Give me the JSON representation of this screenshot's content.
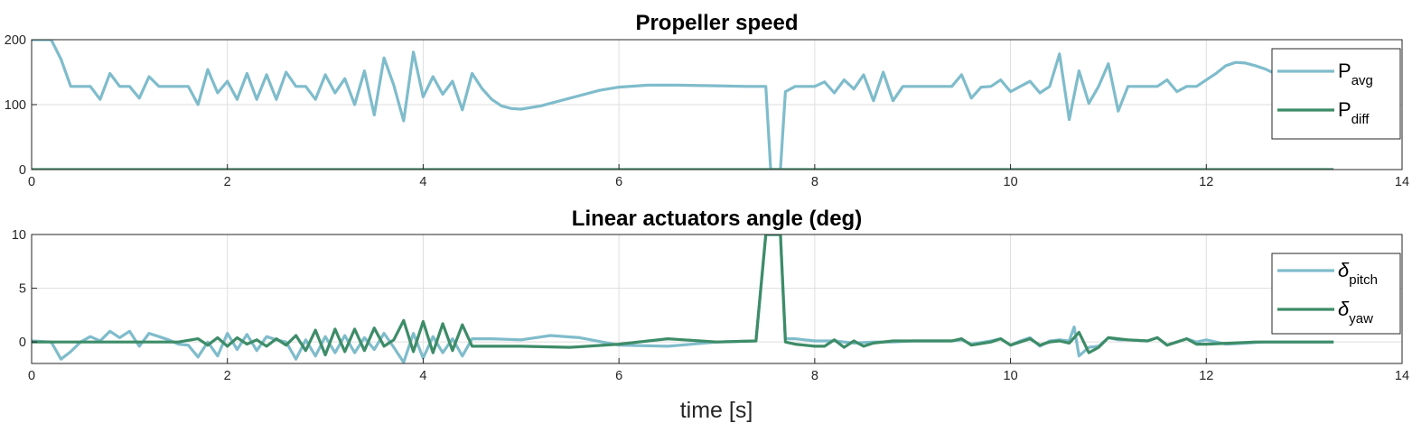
{
  "colors": {
    "series1": "#7fbccb",
    "series2": "#3d8c68"
  },
  "xlabel": "time [s]",
  "chart_data": [
    {
      "type": "line",
      "title": "Propeller speed",
      "xlabel": "time [s]",
      "ylabel": "",
      "xlim": [
        0,
        14
      ],
      "ylim": [
        0,
        200
      ],
      "xticks": [
        0,
        2,
        4,
        6,
        8,
        10,
        12,
        14
      ],
      "yticks": [
        0,
        100,
        200
      ],
      "grid": true,
      "legend_position": "right",
      "series": [
        {
          "name": "P",
          "sub": "avg",
          "color": "#7fbccb",
          "x": [
            0,
            0.2,
            0.3,
            0.4,
            0.6,
            0.7,
            0.8,
            0.9,
            1.0,
            1.1,
            1.2,
            1.3,
            1.5,
            1.6,
            1.7,
            1.8,
            1.9,
            2.0,
            2.1,
            2.2,
            2.3,
            2.4,
            2.5,
            2.6,
            2.7,
            2.8,
            2.9,
            3.0,
            3.1,
            3.2,
            3.3,
            3.4,
            3.5,
            3.6,
            3.7,
            3.8,
            3.9,
            4.0,
            4.1,
            4.2,
            4.3,
            4.4,
            4.5,
            4.6,
            4.7,
            4.8,
            4.9,
            5.0,
            5.2,
            5.5,
            5.8,
            6.0,
            6.3,
            6.6,
            7.0,
            7.3,
            7.5,
            7.55,
            7.65,
            7.7,
            7.8,
            8.0,
            8.1,
            8.2,
            8.3,
            8.4,
            8.5,
            8.6,
            8.7,
            8.8,
            8.9,
            9.0,
            9.2,
            9.4,
            9.5,
            9.6,
            9.7,
            9.8,
            9.9,
            10.0,
            10.1,
            10.2,
            10.3,
            10.4,
            10.5,
            10.6,
            10.7,
            10.8,
            10.9,
            11.0,
            11.1,
            11.2,
            11.4,
            11.5,
            11.6,
            11.7,
            11.8,
            11.9,
            12.0,
            12.1,
            12.2,
            12.3,
            12.4,
            12.5,
            12.6,
            12.7,
            12.8
          ],
          "values": [
            200,
            200,
            170,
            128,
            128,
            108,
            148,
            128,
            128,
            110,
            143,
            128,
            128,
            128,
            100,
            154,
            118,
            136,
            108,
            148,
            108,
            146,
            108,
            150,
            128,
            128,
            108,
            146,
            118,
            140,
            100,
            152,
            84,
            172,
            130,
            75,
            181,
            112,
            143,
            116,
            136,
            92,
            148,
            125,
            108,
            98,
            94,
            93,
            98,
            110,
            122,
            127,
            130,
            130,
            129,
            128,
            128,
            0,
            0,
            120,
            128,
            128,
            135,
            118,
            138,
            124,
            146,
            106,
            150,
            106,
            128,
            128,
            128,
            128,
            146,
            110,
            127,
            128,
            138,
            120,
            128,
            136,
            118,
            128,
            178,
            77,
            152,
            102,
            128,
            163,
            90,
            128,
            128,
            128,
            138,
            120,
            128,
            128,
            138,
            148,
            160,
            165,
            164,
            160,
            155,
            148,
            142
          ]
        },
        {
          "name": "P",
          "sub": "diff",
          "color": "#3d8c68",
          "x": [
            0,
            13.3
          ],
          "values": [
            0,
            0
          ]
        }
      ]
    },
    {
      "type": "line",
      "title": "Linear actuators angle (deg)",
      "xlabel": "time [s]",
      "ylabel": "",
      "xlim": [
        0,
        14
      ],
      "ylim": [
        -2,
        10
      ],
      "xticks": [
        0,
        2,
        4,
        6,
        8,
        10,
        12,
        14
      ],
      "yticks": [
        0,
        5,
        10
      ],
      "grid": true,
      "legend_position": "right",
      "series": [
        {
          "name": "δ",
          "sub": "pitch",
          "color": "#7fbccb",
          "x": [
            0,
            0.2,
            0.3,
            0.4,
            0.5,
            0.6,
            0.7,
            0.8,
            0.9,
            1.0,
            1.1,
            1.2,
            1.3,
            1.4,
            1.5,
            1.6,
            1.7,
            1.8,
            1.9,
            2.0,
            2.1,
            2.2,
            2.3,
            2.4,
            2.5,
            2.6,
            2.7,
            2.8,
            2.9,
            3.0,
            3.1,
            3.2,
            3.3,
            3.4,
            3.5,
            3.6,
            3.7,
            3.8,
            3.9,
            4.0,
            4.1,
            4.2,
            4.3,
            4.4,
            4.5,
            4.7,
            5.0,
            5.3,
            5.6,
            6.0,
            6.5,
            7.0,
            7.4,
            7.5,
            7.55,
            7.65,
            7.7,
            7.8,
            7.9,
            8.0,
            8.2,
            8.4,
            8.6,
            8.8,
            9.0,
            9.2,
            9.4,
            9.5,
            9.6,
            9.8,
            9.9,
            10.0,
            10.1,
            10.2,
            10.3,
            10.4,
            10.5,
            10.6,
            10.65,
            10.7,
            10.8,
            10.9,
            11.0,
            11.1,
            11.2,
            11.4,
            11.5,
            11.6,
            11.7,
            11.8,
            11.9,
            12.0,
            12.2,
            12.6,
            13.0,
            13.3
          ],
          "values": [
            0.1,
            0,
            -1.6,
            -0.9,
            0,
            0.5,
            0.1,
            1.0,
            0.4,
            1.0,
            -0.4,
            0.8,
            0.5,
            0.2,
            -0.2,
            -0.3,
            -1.4,
            0,
            -1.3,
            0.8,
            -0.7,
            0.7,
            -0.8,
            0.5,
            0.2,
            0,
            -1.6,
            0.2,
            -1.3,
            0.5,
            -1.0,
            0.6,
            -1.0,
            0.4,
            -0.7,
            0.8,
            -0.5,
            -1.9,
            0.8,
            -1.5,
            0.5,
            -1.0,
            0.3,
            -1.3,
            0.3,
            0.3,
            0.2,
            0.6,
            0.4,
            -0.3,
            -0.4,
            0,
            0.1,
            10,
            10,
            10,
            0.3,
            0.3,
            0.2,
            0.1,
            0.1,
            -0.1,
            0,
            0,
            0.1,
            0.1,
            0.1,
            0.2,
            -0.2,
            0.1,
            0.3,
            -0.3,
            0.1,
            0.4,
            -0.4,
            0.1,
            0.2,
            0.1,
            1.4,
            -1.3,
            -0.5,
            -0.4,
            0.4,
            0.2,
            0.2,
            0.1,
            0.4,
            -0.3,
            0,
            0.3,
            0,
            0.2,
            -0.2,
            0,
            0,
            0
          ]
        },
        {
          "name": "δ",
          "sub": "yaw",
          "color": "#3d8c68",
          "x": [
            0,
            1.5,
            1.7,
            1.8,
            1.9,
            2.0,
            2.1,
            2.2,
            2.3,
            2.4,
            2.5,
            2.6,
            2.7,
            2.8,
            2.9,
            3.0,
            3.1,
            3.2,
            3.3,
            3.4,
            3.5,
            3.6,
            3.7,
            3.8,
            3.9,
            4.0,
            4.1,
            4.2,
            4.3,
            4.4,
            4.5,
            5.0,
            5.5,
            6.0,
            6.5,
            7.0,
            7.4,
            7.5,
            7.55,
            7.65,
            7.7,
            7.8,
            8.0,
            8.1,
            8.2,
            8.3,
            8.4,
            8.5,
            8.6,
            8.8,
            9.0,
            9.4,
            9.5,
            9.6,
            9.8,
            9.9,
            10.0,
            10.1,
            10.2,
            10.3,
            10.4,
            10.5,
            10.6,
            10.7,
            10.8,
            10.9,
            11.0,
            11.1,
            11.2,
            11.4,
            11.5,
            11.6,
            11.7,
            11.8,
            11.9,
            12.0,
            12.5,
            13.0,
            13.3
          ],
          "values": [
            0,
            0,
            0.3,
            -0.3,
            0.4,
            -0.4,
            0.4,
            -0.2,
            0.2,
            -0.4,
            0.3,
            -0.3,
            0.6,
            -0.8,
            1.1,
            -1.2,
            1.2,
            -0.9,
            1.2,
            -0.8,
            1.3,
            -0.4,
            0.2,
            2.0,
            -0.9,
            1.9,
            -1.0,
            1.7,
            -0.8,
            1.6,
            -0.4,
            -0.4,
            -0.5,
            -0.2,
            0.3,
            0,
            0.1,
            10,
            10,
            10,
            0,
            -0.2,
            -0.4,
            -0.4,
            0.2,
            -0.5,
            0.1,
            -0.4,
            -0.1,
            0.1,
            0.1,
            0.1,
            0.3,
            -0.3,
            0,
            0.3,
            -0.3,
            0,
            0.3,
            -0.3,
            0,
            0.1,
            -0.1,
            0.9,
            -1.0,
            -0.5,
            0.4,
            0.3,
            0.2,
            0.1,
            0.4,
            -0.3,
            0,
            0.3,
            -0.2,
            -0.2,
            0,
            0,
            0
          ]
        }
      ]
    }
  ]
}
